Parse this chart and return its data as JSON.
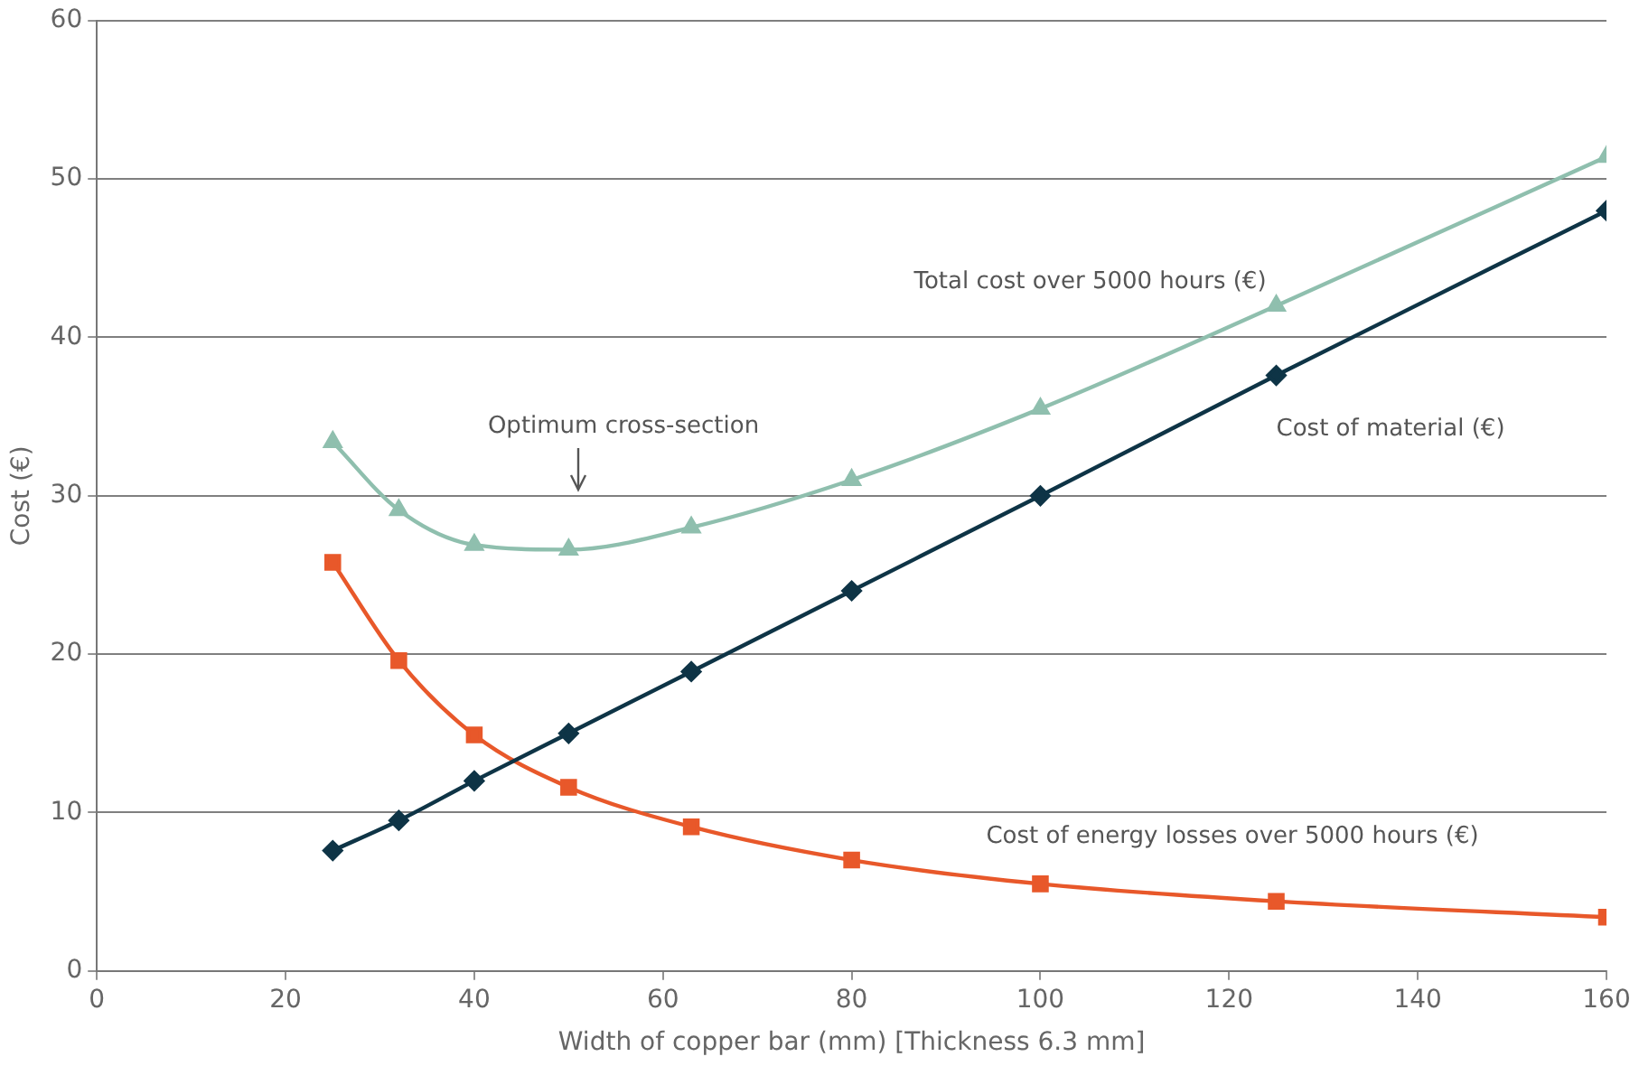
{
  "chart_data": {
    "type": "line",
    "xlabel": "Width of copper bar (mm) [Thickness 6.3 mm]",
    "ylabel": "Cost (€)",
    "x": [
      25,
      32,
      40,
      50,
      63,
      80,
      100,
      125,
      160
    ],
    "series": [
      {
        "name": "Total cost over 5000 hours (€)",
        "color": "#8fbfae",
        "marker": "triangle",
        "values": [
          33.4,
          29.1,
          26.9,
          26.6,
          28,
          31,
          35.5,
          42,
          51.4
        ]
      },
      {
        "name": "Cost of material (€)",
        "color": "#0e3446",
        "marker": "diamond",
        "values": [
          7.6,
          9.5,
          12,
          15,
          18.9,
          24,
          30,
          37.6,
          48
        ]
      },
      {
        "name": "Cost of energy losses over 5000 hours (€)",
        "color": "#e8582a",
        "marker": "square",
        "values": [
          25.8,
          19.6,
          14.9,
          11.6,
          9.1,
          7,
          5.5,
          4.4,
          3.4
        ]
      }
    ],
    "annotations": [
      "Optimum cross-section"
    ],
    "xlim": [
      0,
      160
    ],
    "xticks": [
      0,
      20,
      40,
      60,
      80,
      100,
      120,
      140,
      160
    ],
    "ylim": [
      0,
      60
    ],
    "yticks": [
      0,
      10,
      20,
      30,
      40,
      50,
      60
    ],
    "grid": "y",
    "legend": false
  }
}
